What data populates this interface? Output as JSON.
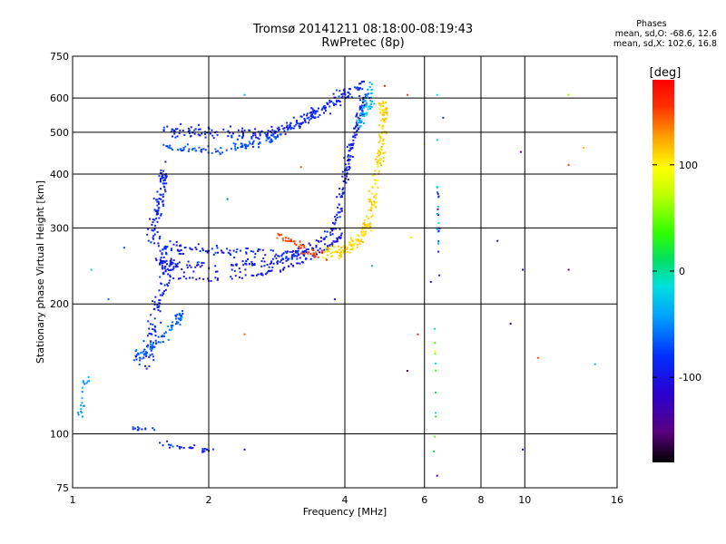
{
  "chart_data": {
    "type": "scatter",
    "title": "Tromsø 20141211 08:18:00-08:19:43",
    "subtitle": "RwPretec (8p)",
    "xlabel": "Frequency [MHz]",
    "ylabel": "Stationary phase Virtual Height [km]",
    "x_scale": "log",
    "y_scale": "log",
    "xlim": [
      1,
      16
    ],
    "ylim": [
      75,
      750
    ],
    "x_ticks": [
      "1",
      "2",
      "4",
      "6",
      "8",
      "10",
      "16"
    ],
    "y_ticks": [
      "750",
      "600",
      "500",
      "400",
      "300",
      "200",
      "100",
      "75"
    ],
    "grid": true,
    "stats": {
      "heading": "Phases",
      "line_o": "mean, sd,O: -68.6, 12.6",
      "line_x": "mean, sd,X: 102.6, 16.8"
    },
    "colorbar": {
      "label": "[deg]",
      "range": [
        -180,
        180
      ],
      "ticks": [
        "100",
        "0",
        "-100"
      ],
      "colormap": "rainbow"
    },
    "traces": [
      {
        "kind": "curve",
        "points": [
          [
            1.6,
            505
          ],
          [
            1.75,
            500
          ],
          [
            2.0,
            497
          ],
          [
            2.3,
            495
          ],
          [
            2.6,
            494
          ],
          [
            2.8,
            500
          ],
          [
            3.0,
            510
          ],
          [
            3.2,
            530
          ],
          [
            3.4,
            550
          ],
          [
            3.6,
            570
          ],
          [
            3.85,
            595
          ],
          [
            4.1,
            620
          ],
          [
            4.4,
            640
          ]
        ],
        "spread": 0.035,
        "count": 260,
        "phase": -90,
        "phase_sd": 20
      },
      {
        "kind": "curve",
        "points": [
          [
            1.55,
            465
          ],
          [
            1.8,
            458
          ],
          [
            2.1,
            455
          ],
          [
            2.4,
            465
          ],
          [
            2.7,
            480
          ],
          [
            2.9,
            490
          ]
        ],
        "spread": 0.02,
        "count": 90,
        "phase": -70,
        "phase_sd": 20
      },
      {
        "kind": "curve",
        "points": [
          [
            1.55,
            250
          ],
          [
            1.7,
            245
          ],
          [
            2.0,
            242
          ],
          [
            2.4,
            245
          ],
          [
            2.8,
            250
          ],
          [
            3.1,
            260
          ],
          [
            3.5,
            275
          ],
          [
            3.8,
            300
          ],
          [
            3.95,
            360
          ],
          [
            4.05,
            420
          ],
          [
            4.15,
            470
          ],
          [
            4.25,
            520
          ],
          [
            4.35,
            560
          ],
          [
            4.45,
            610
          ]
        ],
        "spread": 0.03,
        "count": 300,
        "phase": -95,
        "phase_sd": 18
      },
      {
        "kind": "curve",
        "points": [
          [
            1.6,
            232
          ],
          [
            2.0,
            228
          ],
          [
            2.5,
            232
          ],
          [
            2.9,
            240
          ],
          [
            3.2,
            250
          ],
          [
            3.5,
            260
          ],
          [
            3.75,
            275
          ],
          [
            3.95,
            290
          ]
        ],
        "spread": 0.012,
        "count": 90,
        "phase": -100,
        "phase_sd": 10
      },
      {
        "kind": "curve",
        "points": [
          [
            1.6,
            270
          ],
          [
            1.8,
            268
          ],
          [
            2.2,
            265
          ],
          [
            2.6,
            262
          ],
          [
            3.0,
            258
          ],
          [
            3.3,
            262
          ]
        ],
        "spread": 0.035,
        "count": 100,
        "phase": -90,
        "phase_sd": 20
      },
      {
        "kind": "curve",
        "points": [
          [
            1.45,
            145
          ],
          [
            1.5,
            170
          ],
          [
            1.55,
            200
          ],
          [
            1.6,
            230
          ],
          [
            1.58,
            260
          ],
          [
            1.5,
            290
          ],
          [
            1.55,
            330
          ],
          [
            1.6,
            380
          ],
          [
            1.58,
            410
          ]
        ],
        "spread": 0.05,
        "count": 200,
        "phase": -90,
        "phase_sd": 18
      },
      {
        "kind": "curve",
        "points": [
          [
            1.35,
            150
          ],
          [
            1.45,
            155
          ],
          [
            1.6,
            170
          ],
          [
            1.75,
            190
          ]
        ],
        "spread": 0.03,
        "count": 80,
        "phase": -60,
        "phase_sd": 25
      },
      {
        "kind": "curve",
        "points": [
          [
            3.6,
            262
          ],
          [
            3.9,
            265
          ],
          [
            4.2,
            275
          ],
          [
            4.4,
            290
          ],
          [
            4.55,
            320
          ],
          [
            4.65,
            370
          ],
          [
            4.75,
            420
          ],
          [
            4.85,
            480
          ],
          [
            4.9,
            540
          ],
          [
            4.85,
            590
          ]
        ],
        "spread": 0.04,
        "count": 230,
        "phase": 110,
        "phase_sd": 12
      },
      {
        "kind": "curve",
        "points": [
          [
            2.8,
            290
          ],
          [
            3.0,
            280
          ],
          [
            3.2,
            270
          ],
          [
            3.4,
            262
          ],
          [
            3.6,
            258
          ]
        ],
        "spread": 0.03,
        "count": 50,
        "phase": 150,
        "phase_sd": 10
      },
      {
        "kind": "curve",
        "points": [
          [
            4.3,
            520
          ],
          [
            4.45,
            560
          ],
          [
            4.55,
            600
          ],
          [
            4.6,
            640
          ]
        ],
        "spread": 0.04,
        "count": 50,
        "phase": -30,
        "phase_sd": 20
      },
      {
        "kind": "curve",
        "points": [
          [
            1.03,
            110
          ],
          [
            1.06,
            125
          ],
          [
            1.08,
            140
          ]
        ],
        "spread": 0.03,
        "count": 20,
        "phase": -40,
        "phase_sd": 15
      },
      {
        "kind": "curve",
        "points": [
          [
            1.55,
            95
          ],
          [
            1.7,
            94
          ],
          [
            1.9,
            92
          ],
          [
            2.1,
            91
          ]
        ],
        "spread": 0.02,
        "count": 30,
        "phase": -90,
        "phase_sd": 20
      },
      {
        "kind": "curve",
        "points": [
          [
            1.35,
            103
          ],
          [
            1.55,
            102
          ]
        ],
        "spread": 0.01,
        "count": 12,
        "phase": -80,
        "phase_sd": 20
      },
      {
        "kind": "curve",
        "points": [
          [
            6.4,
            500
          ],
          [
            6.4,
            380
          ],
          [
            6.45,
            300
          ],
          [
            6.45,
            230
          ]
        ],
        "spread": 0.01,
        "count": 22,
        "phase": -60,
        "phase_sd": 70
      },
      {
        "kind": "curve",
        "points": [
          [
            6.3,
            190
          ],
          [
            6.35,
            150
          ],
          [
            6.35,
            110
          ],
          [
            6.3,
            90
          ]
        ],
        "spread": 0.005,
        "count": 12,
        "phase": 20,
        "phase_sd": 60
      }
    ],
    "points": [
      [
        2.4,
        610,
        -40
      ],
      [
        3.2,
        415,
        150
      ],
      [
        4.6,
        245,
        -40
      ],
      [
        5.6,
        285,
        80
      ],
      [
        5.8,
        170,
        160
      ],
      [
        6.0,
        470,
        80
      ],
      [
        6.4,
        610,
        -10
      ],
      [
        6.6,
        540,
        -80
      ],
      [
        6.2,
        225,
        -120
      ],
      [
        5.5,
        140,
        -150
      ],
      [
        8.7,
        280,
        -110
      ],
      [
        9.3,
        180,
        -120
      ],
      [
        9.9,
        240,
        -110
      ],
      [
        9.9,
        92,
        -120
      ],
      [
        9.8,
        450,
        -150
      ],
      [
        10.7,
        150,
        150
      ],
      [
        12.5,
        610,
        60
      ],
      [
        12.5,
        420,
        150
      ],
      [
        13.5,
        460,
        120
      ],
      [
        14.3,
        145,
        -30
      ],
      [
        12.5,
        240,
        -130
      ],
      [
        6.4,
        80,
        -130
      ],
      [
        2.4,
        170,
        140
      ],
      [
        2.4,
        92,
        -130
      ],
      [
        2.2,
        350,
        -60
      ],
      [
        1.9,
        250,
        -50
      ],
      [
        1.2,
        205,
        -60
      ],
      [
        1.1,
        240,
        -20
      ],
      [
        1.3,
        270,
        -70
      ],
      [
        3.8,
        205,
        -100
      ],
      [
        5.5,
        610,
        150
      ],
      [
        4.9,
        640,
        160
      ]
    ]
  }
}
